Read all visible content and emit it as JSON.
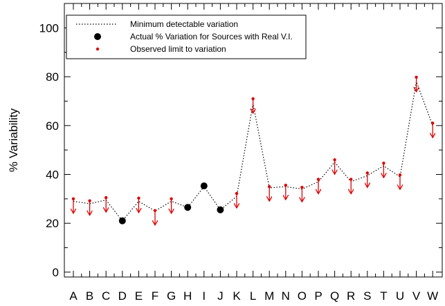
{
  "chart_data": {
    "type": "scatter",
    "title": "",
    "xlabel": "",
    "ylabel": "% Variability",
    "ylim": [
      -2,
      110
    ],
    "yticks": [
      0,
      20,
      40,
      60,
      80,
      100
    ],
    "grid": false,
    "legend_position": "top-left",
    "categories": [
      "A",
      "B",
      "C",
      "D",
      "E",
      "F",
      "G",
      "H",
      "I",
      "J",
      "K",
      "L",
      "M",
      "N",
      "O",
      "P",
      "Q",
      "R",
      "S",
      "T",
      "U",
      "V",
      "W"
    ],
    "series": [
      {
        "name": "Minimum detectable variation",
        "style": "dotted-line",
        "color": "#000000",
        "values": [
          29,
          28,
          29.5,
          21,
          29,
          25,
          29,
          26.5,
          35,
          25.5,
          31,
          69,
          34.5,
          35,
          34,
          37,
          45,
          37,
          39.5,
          43.5,
          39,
          78,
          60
        ]
      },
      {
        "name": "Actual % Variation for Sources with Real V.I.",
        "style": "large-dot",
        "color": "#000000",
        "points": [
          {
            "category": "D",
            "value": 21
          },
          {
            "category": "H",
            "value": 26.5
          },
          {
            "category": "I",
            "value": 35.3
          },
          {
            "category": "J",
            "value": 25.5
          }
        ]
      },
      {
        "name": "Observed limit to variation",
        "style": "small-dot-with-down-arrow",
        "color": "#dd0000",
        "points": [
          {
            "category": "A",
            "value": 30
          },
          {
            "category": "B",
            "value": 29.2
          },
          {
            "category": "C",
            "value": 30.5
          },
          {
            "category": "E",
            "value": 30.3
          },
          {
            "category": "F",
            "value": 25.2
          },
          {
            "category": "G",
            "value": 30
          },
          {
            "category": "K",
            "value": 32.2
          },
          {
            "category": "L",
            "value": 71
          },
          {
            "category": "M",
            "value": 35
          },
          {
            "category": "N",
            "value": 35.6
          },
          {
            "category": "O",
            "value": 34.7
          },
          {
            "category": "P",
            "value": 38
          },
          {
            "category": "Q",
            "value": 46
          },
          {
            "category": "R",
            "value": 38
          },
          {
            "category": "S",
            "value": 40.6
          },
          {
            "category": "T",
            "value": 44.6
          },
          {
            "category": "U",
            "value": 39.8
          },
          {
            "category": "V",
            "value": 79.8
          },
          {
            "category": "W",
            "value": 61
          }
        ]
      }
    ]
  }
}
